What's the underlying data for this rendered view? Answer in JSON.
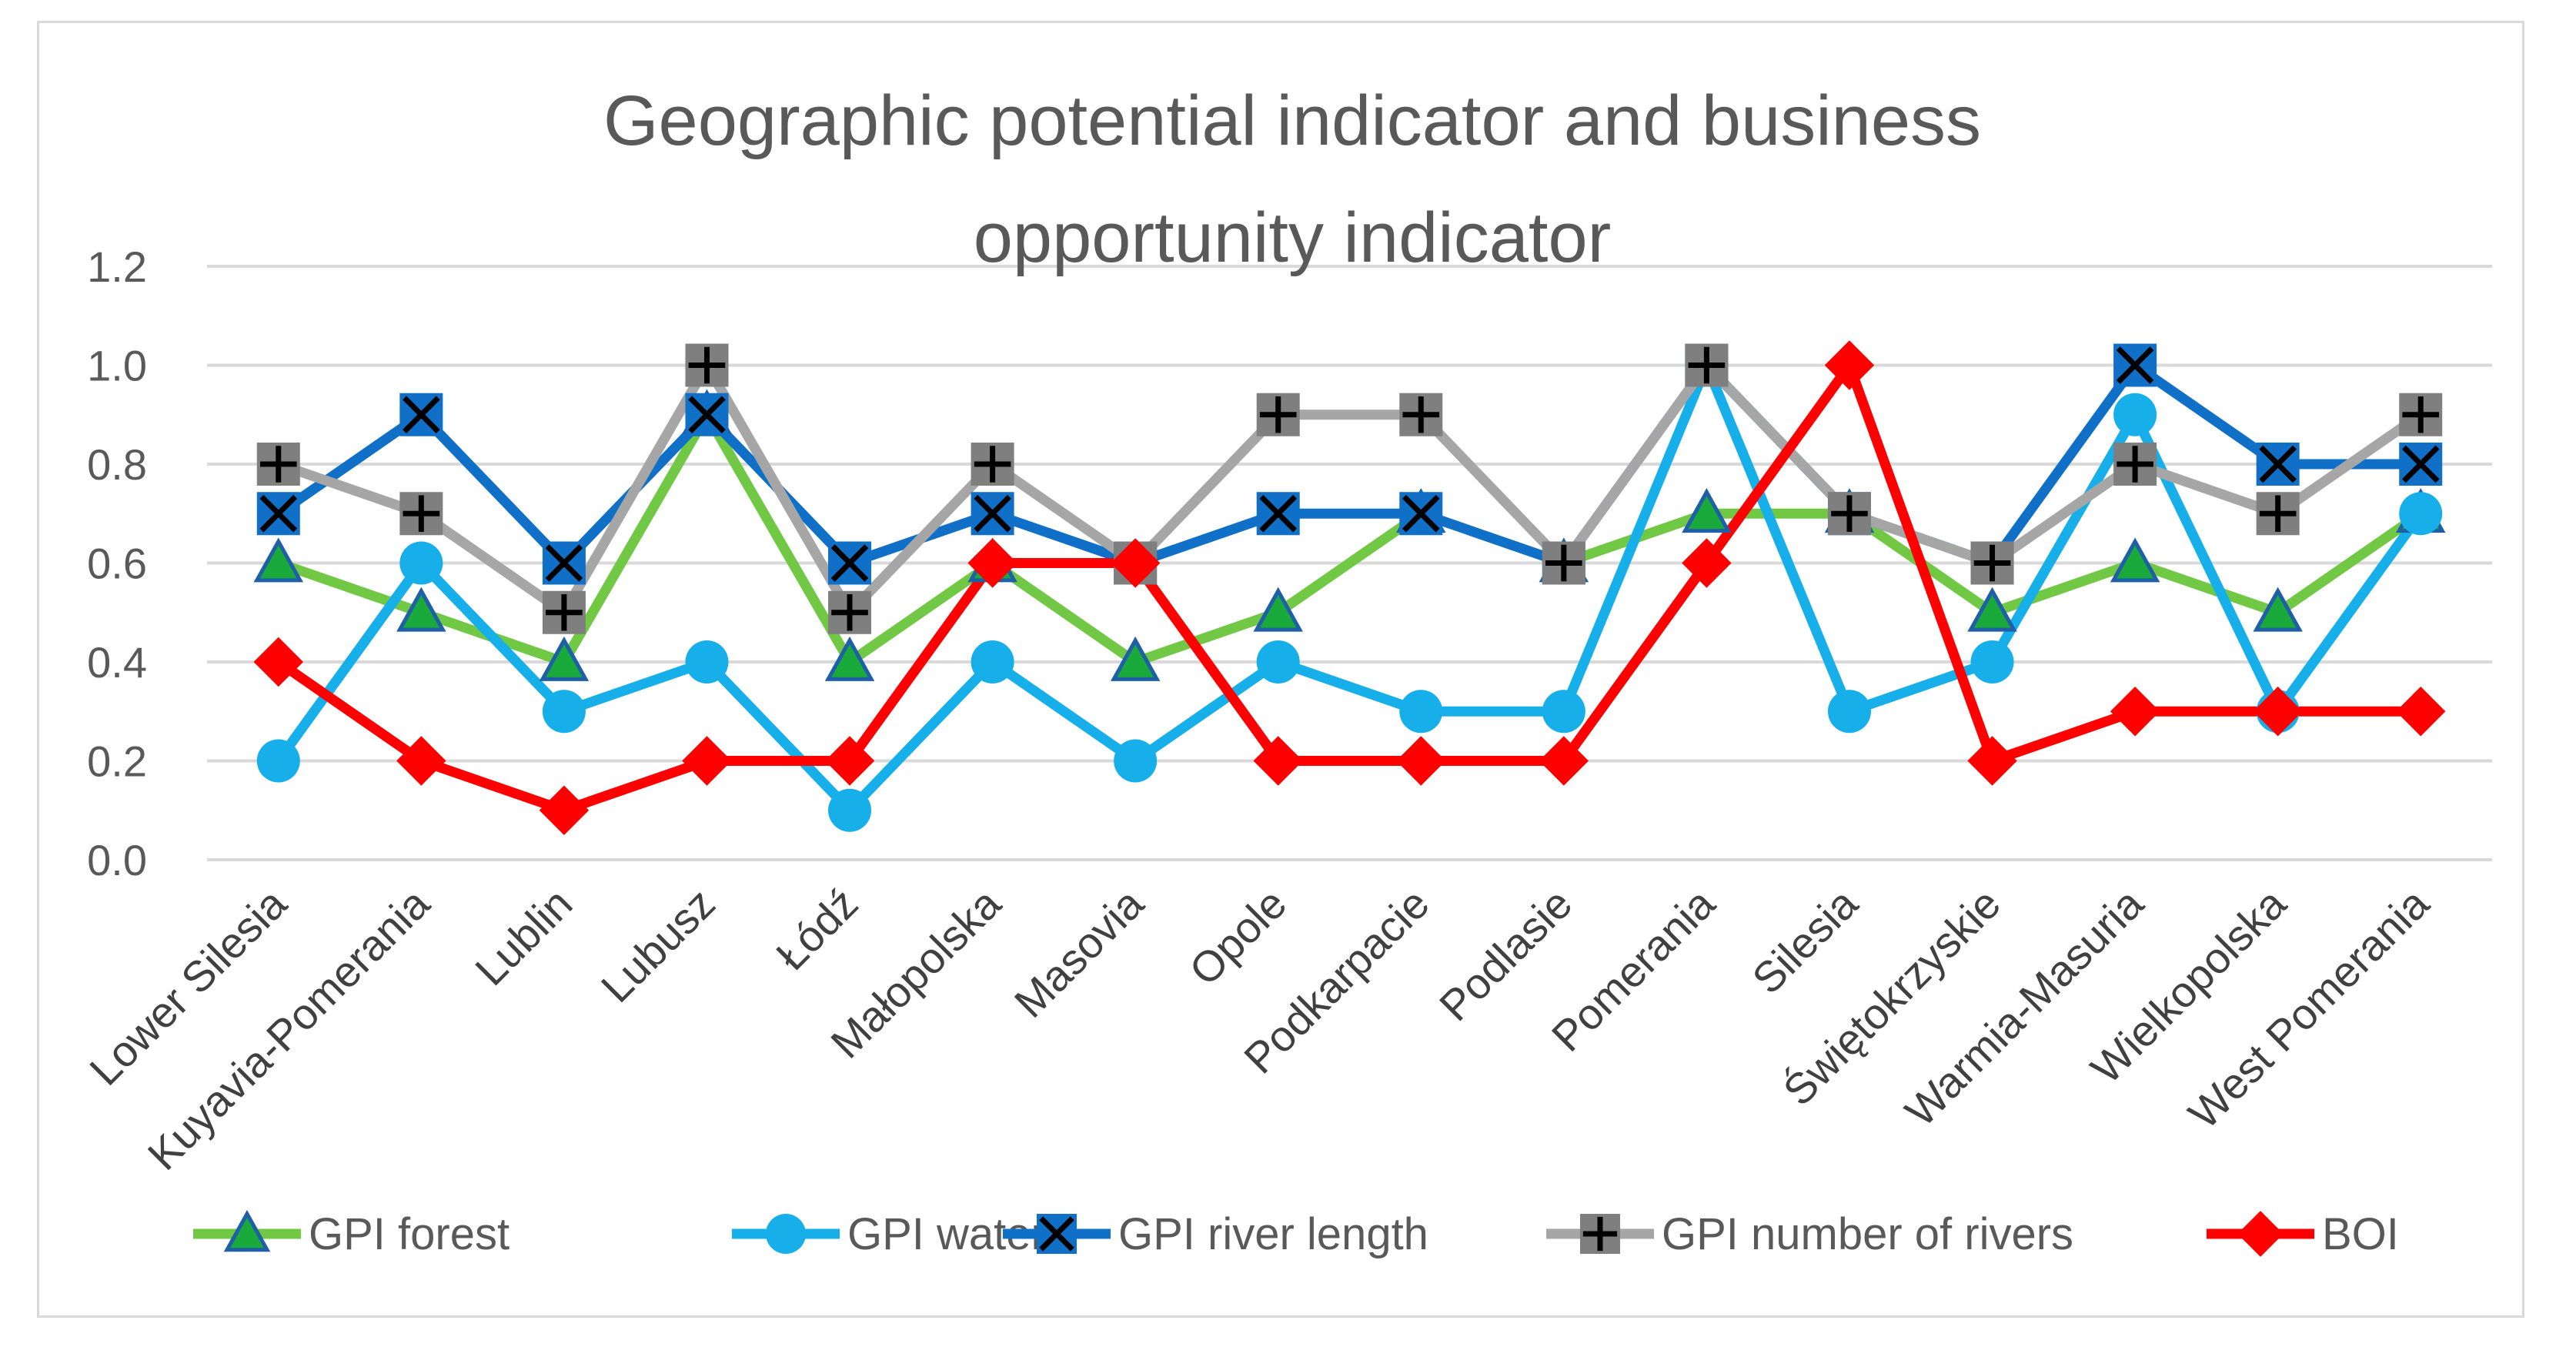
{
  "chart_data": {
    "type": "line",
    "title_lines": [
      "Geographic potential indicator and business",
      "opportunity  indicator"
    ],
    "xlabel": "",
    "ylabel": "",
    "ylim": [
      0,
      1.2
    ],
    "yticks": [
      "0.0",
      "0.2",
      "0.4",
      "0.6",
      "0.8",
      "1.0",
      "1.2"
    ],
    "grid": true,
    "legend_position": "bottom",
    "categories": [
      "Lower Silesia",
      "Kuyavia-Pomerania",
      "Lublin",
      "Lubusz",
      "Łódź",
      "Małopolska",
      "Masovia",
      "Opole",
      "Podkarpacie",
      "Podlasie",
      "Pomerania",
      "Silesia",
      "Świętokrzyskie",
      "Warmia-Masuria",
      "Wielkopolska",
      "West Pomerania"
    ],
    "series": [
      {
        "name": "GPI forest",
        "color": "#70c844",
        "marker": "triangle",
        "marker_fill": "#1aaa3c",
        "marker_stroke": "#1f5fa8",
        "values": [
          0.6,
          0.5,
          0.4,
          0.9,
          0.4,
          0.6,
          0.4,
          0.5,
          0.7,
          0.6,
          0.7,
          0.7,
          0.5,
          0.6,
          0.5,
          0.7
        ]
      },
      {
        "name": "GPI water",
        "color": "#17afe9",
        "marker": "circle",
        "marker_fill": "#17afe9",
        "marker_stroke": "#17afe9",
        "values": [
          0.2,
          0.6,
          0.3,
          0.4,
          0.1,
          0.4,
          0.2,
          0.4,
          0.3,
          0.3,
          1.0,
          0.3,
          0.4,
          0.9,
          0.3,
          0.7
        ]
      },
      {
        "name": "GPI river length",
        "color": "#1070c8",
        "marker": "x",
        "marker_fill": "#1070c8",
        "marker_stroke": "#000000",
        "values": [
          0.7,
          0.9,
          0.6,
          0.9,
          0.6,
          0.7,
          0.6,
          0.7,
          0.7,
          0.6,
          1.0,
          0.7,
          0.6,
          1.0,
          0.8,
          0.8
        ]
      },
      {
        "name": "GPI number of rivers",
        "color": "#a6a6a6",
        "marker": "plus",
        "marker_fill": "#a6a6a6",
        "marker_stroke": "#000000",
        "values": [
          0.8,
          0.7,
          0.5,
          1.0,
          0.5,
          0.8,
          0.6,
          0.9,
          0.9,
          0.6,
          1.0,
          0.7,
          0.6,
          0.8,
          0.7,
          0.9
        ]
      },
      {
        "name": "BOI",
        "color": "#ff0000",
        "marker": "diamond",
        "marker_fill": "#ff0000",
        "marker_stroke": "#ff0000",
        "values": [
          0.4,
          0.2,
          0.1,
          0.2,
          0.2,
          0.6,
          0.6,
          0.2,
          0.2,
          0.2,
          0.6,
          1.0,
          0.2,
          0.3,
          0.3,
          0.3
        ]
      }
    ]
  }
}
